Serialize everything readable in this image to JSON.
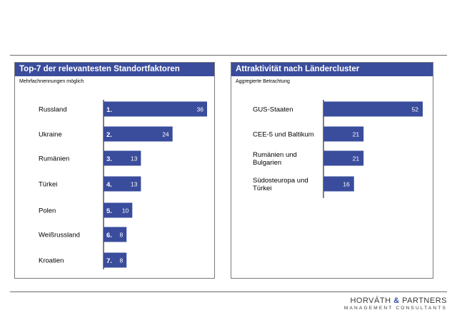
{
  "chart_data": [
    {
      "type": "bar",
      "orientation": "horizontal",
      "title": "Top-7 der relevantesten Standortfaktoren",
      "subtitle": "Mehrfachnennungen möglich",
      "categories": [
        "Russland",
        "Ukraine",
        "Rumänien",
        "Türkei",
        "Polen",
        "Weißrussland",
        "Kroatien"
      ],
      "ranks": [
        "1.",
        "2.",
        "3.",
        "4.",
        "5.",
        "6.",
        "7."
      ],
      "values": [
        36,
        24,
        13,
        13,
        10,
        8,
        8
      ],
      "xlim": [
        0,
        36
      ],
      "grid": false,
      "bar_color": "#3a4c9c"
    },
    {
      "type": "bar",
      "orientation": "horizontal",
      "title": "Attraktivität nach Ländercluster",
      "subtitle": "Aggregierte Betrachtung",
      "categories": [
        [
          "GUS-Staaten"
        ],
        [
          "CEE-5 und Baltikum"
        ],
        [
          "Rumänien und",
          "Bulgarien"
        ],
        [
          "Südosteuropa und",
          "Türkei"
        ]
      ],
      "values": [
        52,
        21,
        21,
        16
      ],
      "xlim": [
        0,
        52
      ],
      "grid": false,
      "bar_color": "#3a4c9c"
    }
  ],
  "logo": {
    "main_left": "HORVÁTH",
    "amp": "&",
    "main_right": "PARTNERS",
    "sub": "MANAGEMENT CONSULTANTS"
  }
}
